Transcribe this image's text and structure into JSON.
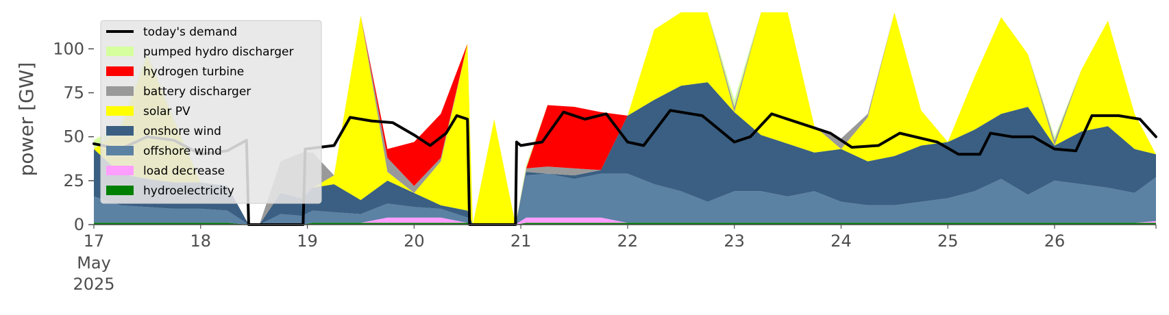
{
  "chart_data": {
    "type": "area",
    "title": "",
    "xlabel": "",
    "ylabel": "power [GW]",
    "xlim": [
      17,
      26.95
    ],
    "ylim": [
      0,
      120
    ],
    "y_ticks": [
      0,
      25,
      50,
      75,
      100
    ],
    "x_ticks": [
      {
        "value": 17,
        "label": "17",
        "sub": [
          "May",
          "2025"
        ]
      },
      {
        "value": 18,
        "label": "18"
      },
      {
        "value": 19,
        "label": "19"
      },
      {
        "value": 20,
        "label": "20"
      },
      {
        "value": 21,
        "label": "21"
      },
      {
        "value": 22,
        "label": "22"
      },
      {
        "value": 23,
        "label": "23"
      },
      {
        "value": 24,
        "label": "24"
      },
      {
        "value": 25,
        "label": "25"
      },
      {
        "value": 26,
        "label": "26"
      }
    ],
    "x": [
      17.0,
      17.25,
      17.5,
      17.75,
      18.0,
      18.25,
      18.45,
      18.55,
      18.75,
      18.95,
      19.05,
      19.25,
      19.5,
      19.75,
      20.0,
      20.25,
      20.5,
      20.55,
      20.75,
      20.95,
      21.05,
      21.25,
      21.5,
      21.75,
      22.0,
      22.25,
      22.5,
      22.75,
      23.0,
      23.25,
      23.5,
      23.75,
      24.0,
      24.25,
      24.5,
      24.75,
      25.0,
      25.25,
      25.5,
      25.75,
      26.0,
      26.25,
      26.5,
      26.75,
      26.95
    ],
    "series": [
      {
        "name": "hydroelectricity",
        "color": "#008000",
        "values": [
          1,
          1,
          1,
          1,
          1,
          1,
          0,
          0,
          0,
          0,
          1,
          1,
          1,
          1,
          1,
          1,
          1,
          0,
          0,
          0,
          1,
          1,
          1,
          1,
          1,
          1,
          1,
          1,
          1,
          1,
          1,
          1,
          1,
          1,
          1,
          1,
          1,
          1,
          1,
          1,
          1,
          1,
          1,
          1,
          1
        ]
      },
      {
        "name": "load decrease",
        "color": "#ff9eff",
        "values": [
          0,
          0,
          0,
          0,
          0,
          0,
          0,
          0,
          0,
          0,
          0,
          0,
          0,
          3,
          3,
          3,
          0,
          0,
          0,
          0,
          3,
          3,
          3,
          3,
          0,
          0,
          0,
          0,
          0,
          0,
          0,
          0,
          0,
          0,
          0,
          0,
          0,
          0,
          0,
          0,
          0,
          0,
          0,
          0,
          1
        ]
      },
      {
        "name": "offshore wind",
        "color": "#5b81a3",
        "values": [
          15,
          10,
          9,
          8,
          8,
          7,
          0,
          0,
          6,
          5,
          7,
          6,
          5,
          8,
          6,
          5,
          3,
          0,
          0,
          0,
          24,
          25,
          22,
          25,
          28,
          22,
          18,
          12,
          18,
          18,
          15,
          18,
          12,
          10,
          10,
          12,
          14,
          18,
          25,
          16,
          24,
          22,
          20,
          17,
          25
        ]
      },
      {
        "name": "onshore wind",
        "color": "#3a5f82",
        "values": [
          27,
          18,
          16,
          15,
          15,
          14,
          0,
          0,
          12,
          10,
          13,
          16,
          8,
          13,
          8,
          2,
          4,
          0,
          0,
          0,
          2,
          0,
          2,
          2,
          33,
          48,
          60,
          68,
          45,
          32,
          30,
          22,
          30,
          25,
          28,
          32,
          32,
          35,
          37,
          50,
          20,
          30,
          35,
          25,
          13
        ]
      },
      {
        "name": "solar PV",
        "color": "#ffff00",
        "values": [
          0,
          25,
          70,
          35,
          0,
          0,
          0,
          0,
          0,
          0,
          0,
          5,
          105,
          5,
          0,
          25,
          95,
          0,
          60,
          0,
          0,
          0,
          0,
          0,
          0,
          40,
          90,
          55,
          0,
          80,
          120,
          15,
          0,
          25,
          90,
          20,
          0,
          30,
          55,
          30,
          0,
          35,
          60,
          20,
          0
        ]
      },
      {
        "name": "battery discharger",
        "color": "#999999",
        "values": [
          0,
          0,
          0,
          0,
          0,
          0,
          0,
          0,
          18,
          26,
          20,
          0,
          0,
          8,
          4,
          2,
          0,
          0,
          0,
          0,
          2,
          4,
          4,
          0,
          0,
          0,
          3,
          10,
          3,
          4,
          0,
          0,
          6,
          2,
          0,
          0,
          0,
          0,
          0,
          0,
          3,
          0,
          0,
          0,
          0
        ]
      },
      {
        "name": "hydrogen turbine",
        "color": "#ff0000",
        "values": [
          0,
          0,
          0,
          0,
          0,
          0,
          0,
          0,
          0,
          0,
          0,
          0,
          0,
          5,
          25,
          25,
          0,
          0,
          0,
          0,
          0,
          35,
          35,
          33,
          0,
          0,
          0,
          0,
          0,
          0,
          0,
          0,
          0,
          0,
          0,
          0,
          0,
          0,
          0,
          0,
          0,
          0,
          0,
          0,
          0
        ]
      },
      {
        "name": "pumped hydro discharger",
        "color": "#d6ff9e",
        "values": [
          5,
          3,
          2,
          2,
          0,
          0,
          0,
          0,
          0,
          0,
          0,
          0,
          0,
          0,
          0,
          0,
          0,
          0,
          0,
          0,
          2,
          0,
          0,
          0,
          0,
          0,
          0,
          0,
          4,
          0,
          0,
          0,
          0,
          0,
          0,
          0,
          0,
          0,
          0,
          0,
          2,
          0,
          0,
          0,
          0
        ]
      }
    ],
    "lines": [
      {
        "name": "today's demand",
        "color": "#000000",
        "x": [
          17.0,
          17.25,
          17.5,
          17.75,
          18.0,
          18.25,
          18.43,
          18.45,
          18.96,
          18.98,
          19.25,
          19.4,
          19.6,
          19.8,
          20.0,
          20.15,
          20.3,
          20.4,
          20.5,
          20.52,
          20.53,
          20.95,
          20.96,
          21.0,
          21.2,
          21.4,
          21.6,
          21.8,
          22.0,
          22.15,
          22.4,
          22.7,
          23.0,
          23.15,
          23.35,
          23.65,
          23.9,
          24.1,
          24.35,
          24.55,
          24.9,
          25.1,
          25.3,
          25.4,
          25.6,
          25.8,
          26.0,
          26.2,
          26.35,
          26.6,
          26.8,
          26.95
        ],
        "y": [
          46,
          43,
          50,
          48,
          40,
          42,
          48,
          0,
          0,
          43,
          45,
          61,
          59,
          58,
          51,
          45,
          52,
          62,
          60,
          0,
          0,
          0,
          47,
          45,
          47,
          64,
          60,
          63,
          47,
          45,
          65,
          62,
          47,
          50,
          63,
          57,
          52,
          44,
          45,
          52,
          47,
          40,
          40,
          52,
          50,
          50,
          43,
          42,
          62,
          62,
          60,
          50
        ]
      }
    ],
    "legend": {
      "position": "top-left",
      "entries": [
        "today's demand",
        "pumped hydro discharger",
        "hydrogen turbine",
        "battery discharger",
        "solar PV",
        "onshore wind",
        "offshore wind",
        "load decrease",
        "hydroelectricity"
      ]
    }
  }
}
